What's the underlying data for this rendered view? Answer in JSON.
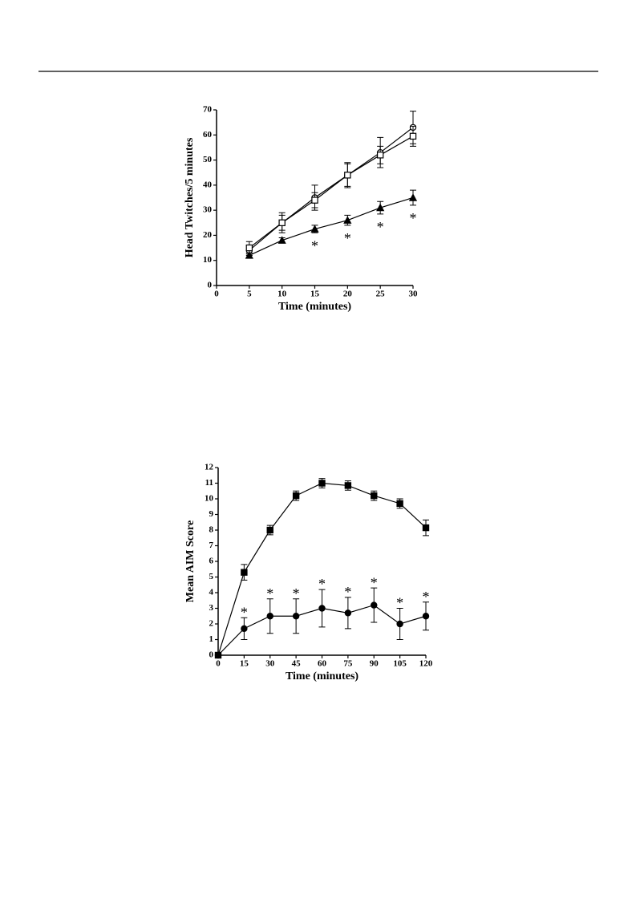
{
  "chart_data": [
    {
      "type": "line",
      "xlabel": "Time (minutes)",
      "ylabel": "Head Twitches/5 minutes",
      "x": [
        5,
        10,
        15,
        20,
        25,
        30
      ],
      "series": [
        {
          "marker": "circle-open",
          "color": "#000000",
          "values": [
            14,
            25,
            35,
            44,
            53,
            63
          ],
          "errors": [
            2,
            4,
            5,
            5,
            6,
            6.5
          ]
        },
        {
          "marker": "square-open",
          "color": "#000000",
          "values": [
            15,
            25,
            34,
            44,
            52,
            59.5
          ],
          "errors": [
            2.5,
            3,
            3,
            4.5,
            3.5,
            4
          ]
        },
        {
          "marker": "triangle",
          "color": "#000000",
          "values": [
            12,
            18,
            22.5,
            26,
            31,
            35
          ],
          "errors": [
            1,
            1,
            1.5,
            2,
            2.5,
            3
          ]
        }
      ],
      "significance": {
        "label": "*",
        "x": [
          15,
          20,
          25,
          30
        ],
        "placement": "below"
      },
      "xlim": [
        0,
        30
      ],
      "xticks": [
        0,
        5,
        10,
        15,
        20,
        25,
        30
      ],
      "ylim": [
        0,
        70
      ],
      "yticks": [
        0,
        10,
        20,
        30,
        40,
        50,
        60,
        70
      ]
    },
    {
      "type": "line",
      "xlabel": "Time (minutes)",
      "ylabel": "Mean AIM Score",
      "x": [
        0,
        15,
        30,
        45,
        60,
        75,
        90,
        105,
        120
      ],
      "series": [
        {
          "marker": "square",
          "color": "#000000",
          "values": [
            0,
            5.3,
            8,
            10.2,
            11,
            10.85,
            10.2,
            9.7,
            8.15
          ],
          "errors": [
            0,
            0.5,
            0.3,
            0.3,
            0.3,
            0.3,
            0.3,
            0.3,
            0.5
          ]
        },
        {
          "marker": "circle",
          "color": "#000000",
          "values": [
            0,
            1.7,
            2.5,
            2.5,
            3,
            2.7,
            3.2,
            2,
            2.5
          ],
          "errors": [
            0,
            0.7,
            1.1,
            1.1,
            1.2,
            1,
            1.1,
            1,
            0.9
          ]
        }
      ],
      "significance": {
        "label": "*",
        "x": [
          15,
          30,
          45,
          60,
          75,
          90,
          105,
          120
        ],
        "placement": "above"
      },
      "xlim": [
        0,
        120
      ],
      "xticks": [
        0,
        15,
        30,
        45,
        60,
        75,
        90,
        105,
        120
      ],
      "ylim": [
        0,
        12
      ],
      "yticks": [
        0,
        1,
        2,
        3,
        4,
        5,
        6,
        7,
        8,
        9,
        10,
        11,
        12
      ]
    }
  ]
}
